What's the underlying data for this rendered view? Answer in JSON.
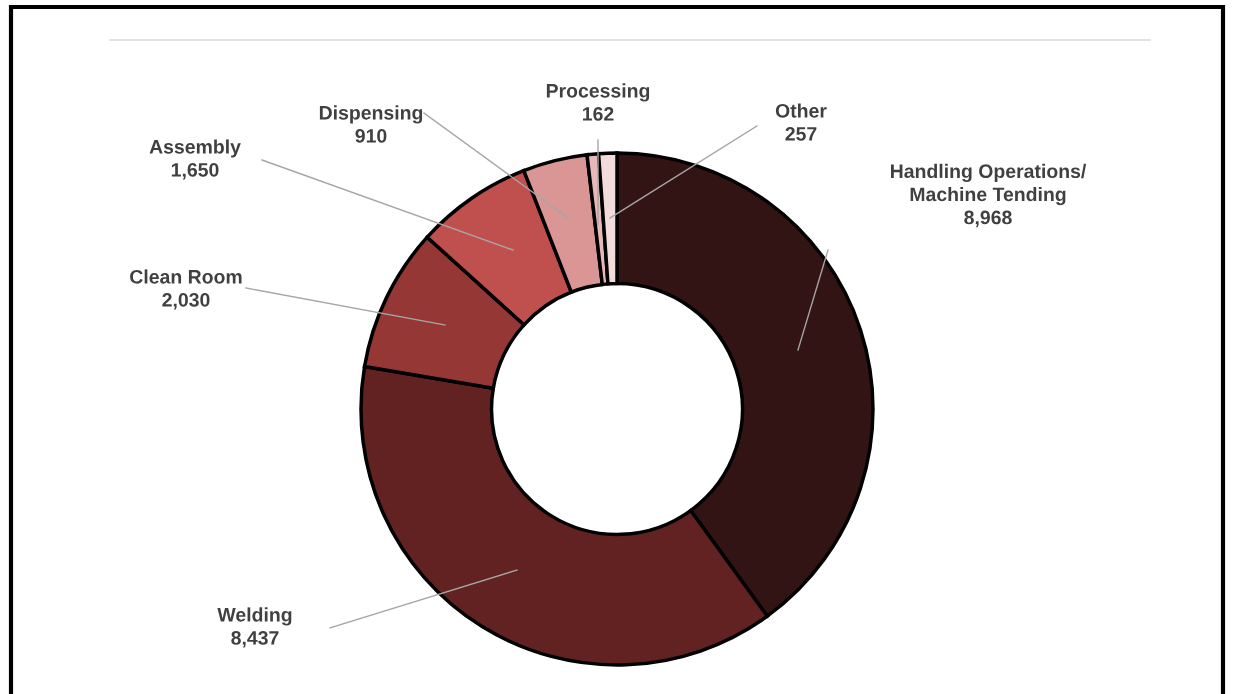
{
  "chart_data": {
    "type": "donut",
    "categories": [
      "Handling Operations/\nMachine Tending",
      "Welding",
      "Clean Room",
      "Assembly",
      "Dispensing",
      "Processing",
      "Other"
    ],
    "values": [
      8968,
      8437,
      2030,
      1650,
      910,
      162,
      257
    ],
    "colors": [
      "#331414",
      "#622222",
      "#953735",
      "#c0504d",
      "#d99694",
      "#e6b9b8",
      "#f2dcdb"
    ],
    "value_labels": [
      "8,968",
      "8,437",
      "2,030",
      "1,650",
      "910",
      "162",
      "257"
    ]
  }
}
